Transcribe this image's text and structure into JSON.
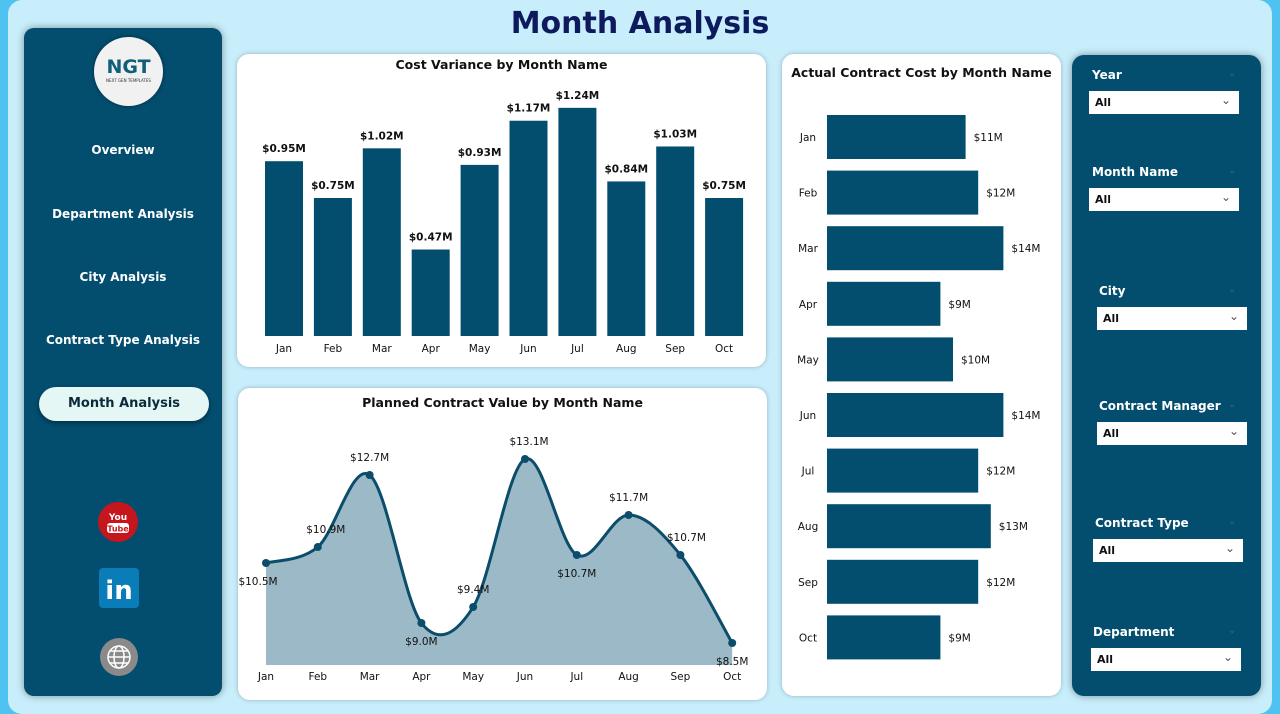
{
  "title": "Month Analysis",
  "logo": {
    "text": "NGT",
    "subtitle": "NEXT GEN TEMPLATES"
  },
  "nav": [
    {
      "label": "Overview"
    },
    {
      "label": "Department Analysis"
    },
    {
      "label": "City Analysis"
    },
    {
      "label": "Contract Type Analysis"
    },
    {
      "label": "Month Analysis",
      "active": true
    }
  ],
  "social": [
    {
      "icon": "youtube-icon",
      "label": "You Tube"
    },
    {
      "icon": "linkedin-icon",
      "label": "in"
    },
    {
      "icon": "globe-icon",
      "label": "www"
    }
  ],
  "colors": {
    "bar": "#034d6e",
    "area": "#9bb9c6",
    "line": "#0b4d6b"
  },
  "chart_data": [
    {
      "type": "bar",
      "title": "Cost Variance by Month Name",
      "categories": [
        "Jan",
        "Feb",
        "Mar",
        "Apr",
        "May",
        "Jun",
        "Jul",
        "Aug",
        "Sep",
        "Oct"
      ],
      "values": [
        0.95,
        0.75,
        1.02,
        0.47,
        0.93,
        1.17,
        1.24,
        0.84,
        1.03,
        0.75
      ],
      "labels": [
        "$0.95M",
        "$0.75M",
        "$1.02M",
        "$0.47M",
        "$0.93M",
        "$1.17M",
        "$1.24M",
        "$0.84M",
        "$1.03M",
        "$0.75M"
      ]
    },
    {
      "type": "area",
      "title": "Planned Contract Value by Month Name",
      "categories": [
        "Jan",
        "Feb",
        "Mar",
        "Apr",
        "May",
        "Jun",
        "Jul",
        "Aug",
        "Sep",
        "Oct"
      ],
      "values": [
        10.5,
        10.9,
        12.7,
        9.0,
        9.4,
        13.1,
        10.7,
        11.7,
        10.7,
        8.5
      ],
      "labels": [
        "$10.5M",
        "$10.9M",
        "$12.7M",
        "$9.0M",
        "$9.4M",
        "$13.1M",
        "$10.7M",
        "$11.7M",
        "$10.7M",
        "$8.5M"
      ]
    },
    {
      "type": "bar",
      "orientation": "horizontal",
      "title": "Actual Contract Cost by Month Name",
      "categories": [
        "Jan",
        "Feb",
        "Mar",
        "Apr",
        "May",
        "Jun",
        "Jul",
        "Aug",
        "Sep",
        "Oct"
      ],
      "values": [
        11,
        12,
        14,
        9,
        10,
        14,
        12,
        13,
        12,
        9
      ],
      "labels": [
        "$11M",
        "$12M",
        "$14M",
        "$9M",
        "$10M",
        "$14M",
        "$12M",
        "$13M",
        "$12M",
        "$9M"
      ]
    }
  ],
  "filters": [
    {
      "label": "Year",
      "value": "All"
    },
    {
      "label": "Month Name",
      "value": "All"
    },
    {
      "label": "City",
      "value": "All"
    },
    {
      "label": "Contract Manager",
      "value": "All"
    },
    {
      "label": "Contract Type",
      "value": "All"
    },
    {
      "label": "Department",
      "value": "All"
    }
  ]
}
